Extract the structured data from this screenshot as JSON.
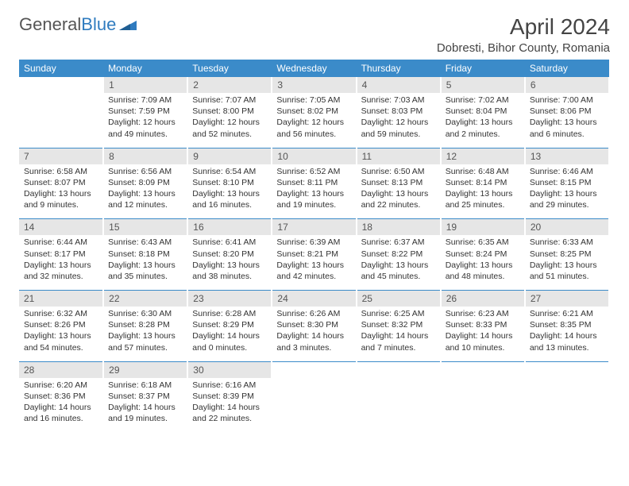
{
  "brand": {
    "text1": "General",
    "text2": "Blue"
  },
  "title": "April 2024",
  "location": "Dobresti, Bihor County, Romania",
  "colors": {
    "header_bg": "#3b8bc9",
    "header_text": "#ffffff",
    "daynum_bg": "#e6e6e6",
    "rule": "#3b8bc9",
    "brand_blue": "#2f7bbf"
  },
  "day_names": [
    "Sunday",
    "Monday",
    "Tuesday",
    "Wednesday",
    "Thursday",
    "Friday",
    "Saturday"
  ],
  "weeks": [
    [
      {
        "n": "",
        "sunrise": "",
        "sunset": "",
        "daylight1": "",
        "daylight2": ""
      },
      {
        "n": "1",
        "sunrise": "Sunrise: 7:09 AM",
        "sunset": "Sunset: 7:59 PM",
        "daylight1": "Daylight: 12 hours",
        "daylight2": "and 49 minutes."
      },
      {
        "n": "2",
        "sunrise": "Sunrise: 7:07 AM",
        "sunset": "Sunset: 8:00 PM",
        "daylight1": "Daylight: 12 hours",
        "daylight2": "and 52 minutes."
      },
      {
        "n": "3",
        "sunrise": "Sunrise: 7:05 AM",
        "sunset": "Sunset: 8:02 PM",
        "daylight1": "Daylight: 12 hours",
        "daylight2": "and 56 minutes."
      },
      {
        "n": "4",
        "sunrise": "Sunrise: 7:03 AM",
        "sunset": "Sunset: 8:03 PM",
        "daylight1": "Daylight: 12 hours",
        "daylight2": "and 59 minutes."
      },
      {
        "n": "5",
        "sunrise": "Sunrise: 7:02 AM",
        "sunset": "Sunset: 8:04 PM",
        "daylight1": "Daylight: 13 hours",
        "daylight2": "and 2 minutes."
      },
      {
        "n": "6",
        "sunrise": "Sunrise: 7:00 AM",
        "sunset": "Sunset: 8:06 PM",
        "daylight1": "Daylight: 13 hours",
        "daylight2": "and 6 minutes."
      }
    ],
    [
      {
        "n": "7",
        "sunrise": "Sunrise: 6:58 AM",
        "sunset": "Sunset: 8:07 PM",
        "daylight1": "Daylight: 13 hours",
        "daylight2": "and 9 minutes."
      },
      {
        "n": "8",
        "sunrise": "Sunrise: 6:56 AM",
        "sunset": "Sunset: 8:09 PM",
        "daylight1": "Daylight: 13 hours",
        "daylight2": "and 12 minutes."
      },
      {
        "n": "9",
        "sunrise": "Sunrise: 6:54 AM",
        "sunset": "Sunset: 8:10 PM",
        "daylight1": "Daylight: 13 hours",
        "daylight2": "and 16 minutes."
      },
      {
        "n": "10",
        "sunrise": "Sunrise: 6:52 AM",
        "sunset": "Sunset: 8:11 PM",
        "daylight1": "Daylight: 13 hours",
        "daylight2": "and 19 minutes."
      },
      {
        "n": "11",
        "sunrise": "Sunrise: 6:50 AM",
        "sunset": "Sunset: 8:13 PM",
        "daylight1": "Daylight: 13 hours",
        "daylight2": "and 22 minutes."
      },
      {
        "n": "12",
        "sunrise": "Sunrise: 6:48 AM",
        "sunset": "Sunset: 8:14 PM",
        "daylight1": "Daylight: 13 hours",
        "daylight2": "and 25 minutes."
      },
      {
        "n": "13",
        "sunrise": "Sunrise: 6:46 AM",
        "sunset": "Sunset: 8:15 PM",
        "daylight1": "Daylight: 13 hours",
        "daylight2": "and 29 minutes."
      }
    ],
    [
      {
        "n": "14",
        "sunrise": "Sunrise: 6:44 AM",
        "sunset": "Sunset: 8:17 PM",
        "daylight1": "Daylight: 13 hours",
        "daylight2": "and 32 minutes."
      },
      {
        "n": "15",
        "sunrise": "Sunrise: 6:43 AM",
        "sunset": "Sunset: 8:18 PM",
        "daylight1": "Daylight: 13 hours",
        "daylight2": "and 35 minutes."
      },
      {
        "n": "16",
        "sunrise": "Sunrise: 6:41 AM",
        "sunset": "Sunset: 8:20 PM",
        "daylight1": "Daylight: 13 hours",
        "daylight2": "and 38 minutes."
      },
      {
        "n": "17",
        "sunrise": "Sunrise: 6:39 AM",
        "sunset": "Sunset: 8:21 PM",
        "daylight1": "Daylight: 13 hours",
        "daylight2": "and 42 minutes."
      },
      {
        "n": "18",
        "sunrise": "Sunrise: 6:37 AM",
        "sunset": "Sunset: 8:22 PM",
        "daylight1": "Daylight: 13 hours",
        "daylight2": "and 45 minutes."
      },
      {
        "n": "19",
        "sunrise": "Sunrise: 6:35 AM",
        "sunset": "Sunset: 8:24 PM",
        "daylight1": "Daylight: 13 hours",
        "daylight2": "and 48 minutes."
      },
      {
        "n": "20",
        "sunrise": "Sunrise: 6:33 AM",
        "sunset": "Sunset: 8:25 PM",
        "daylight1": "Daylight: 13 hours",
        "daylight2": "and 51 minutes."
      }
    ],
    [
      {
        "n": "21",
        "sunrise": "Sunrise: 6:32 AM",
        "sunset": "Sunset: 8:26 PM",
        "daylight1": "Daylight: 13 hours",
        "daylight2": "and 54 minutes."
      },
      {
        "n": "22",
        "sunrise": "Sunrise: 6:30 AM",
        "sunset": "Sunset: 8:28 PM",
        "daylight1": "Daylight: 13 hours",
        "daylight2": "and 57 minutes."
      },
      {
        "n": "23",
        "sunrise": "Sunrise: 6:28 AM",
        "sunset": "Sunset: 8:29 PM",
        "daylight1": "Daylight: 14 hours",
        "daylight2": "and 0 minutes."
      },
      {
        "n": "24",
        "sunrise": "Sunrise: 6:26 AM",
        "sunset": "Sunset: 8:30 PM",
        "daylight1": "Daylight: 14 hours",
        "daylight2": "and 3 minutes."
      },
      {
        "n": "25",
        "sunrise": "Sunrise: 6:25 AM",
        "sunset": "Sunset: 8:32 PM",
        "daylight1": "Daylight: 14 hours",
        "daylight2": "and 7 minutes."
      },
      {
        "n": "26",
        "sunrise": "Sunrise: 6:23 AM",
        "sunset": "Sunset: 8:33 PM",
        "daylight1": "Daylight: 14 hours",
        "daylight2": "and 10 minutes."
      },
      {
        "n": "27",
        "sunrise": "Sunrise: 6:21 AM",
        "sunset": "Sunset: 8:35 PM",
        "daylight1": "Daylight: 14 hours",
        "daylight2": "and 13 minutes."
      }
    ],
    [
      {
        "n": "28",
        "sunrise": "Sunrise: 6:20 AM",
        "sunset": "Sunset: 8:36 PM",
        "daylight1": "Daylight: 14 hours",
        "daylight2": "and 16 minutes."
      },
      {
        "n": "29",
        "sunrise": "Sunrise: 6:18 AM",
        "sunset": "Sunset: 8:37 PM",
        "daylight1": "Daylight: 14 hours",
        "daylight2": "and 19 minutes."
      },
      {
        "n": "30",
        "sunrise": "Sunrise: 6:16 AM",
        "sunset": "Sunset: 8:39 PM",
        "daylight1": "Daylight: 14 hours",
        "daylight2": "and 22 minutes."
      },
      {
        "n": "",
        "sunrise": "",
        "sunset": "",
        "daylight1": "",
        "daylight2": ""
      },
      {
        "n": "",
        "sunrise": "",
        "sunset": "",
        "daylight1": "",
        "daylight2": ""
      },
      {
        "n": "",
        "sunrise": "",
        "sunset": "",
        "daylight1": "",
        "daylight2": ""
      },
      {
        "n": "",
        "sunrise": "",
        "sunset": "",
        "daylight1": "",
        "daylight2": ""
      }
    ]
  ]
}
